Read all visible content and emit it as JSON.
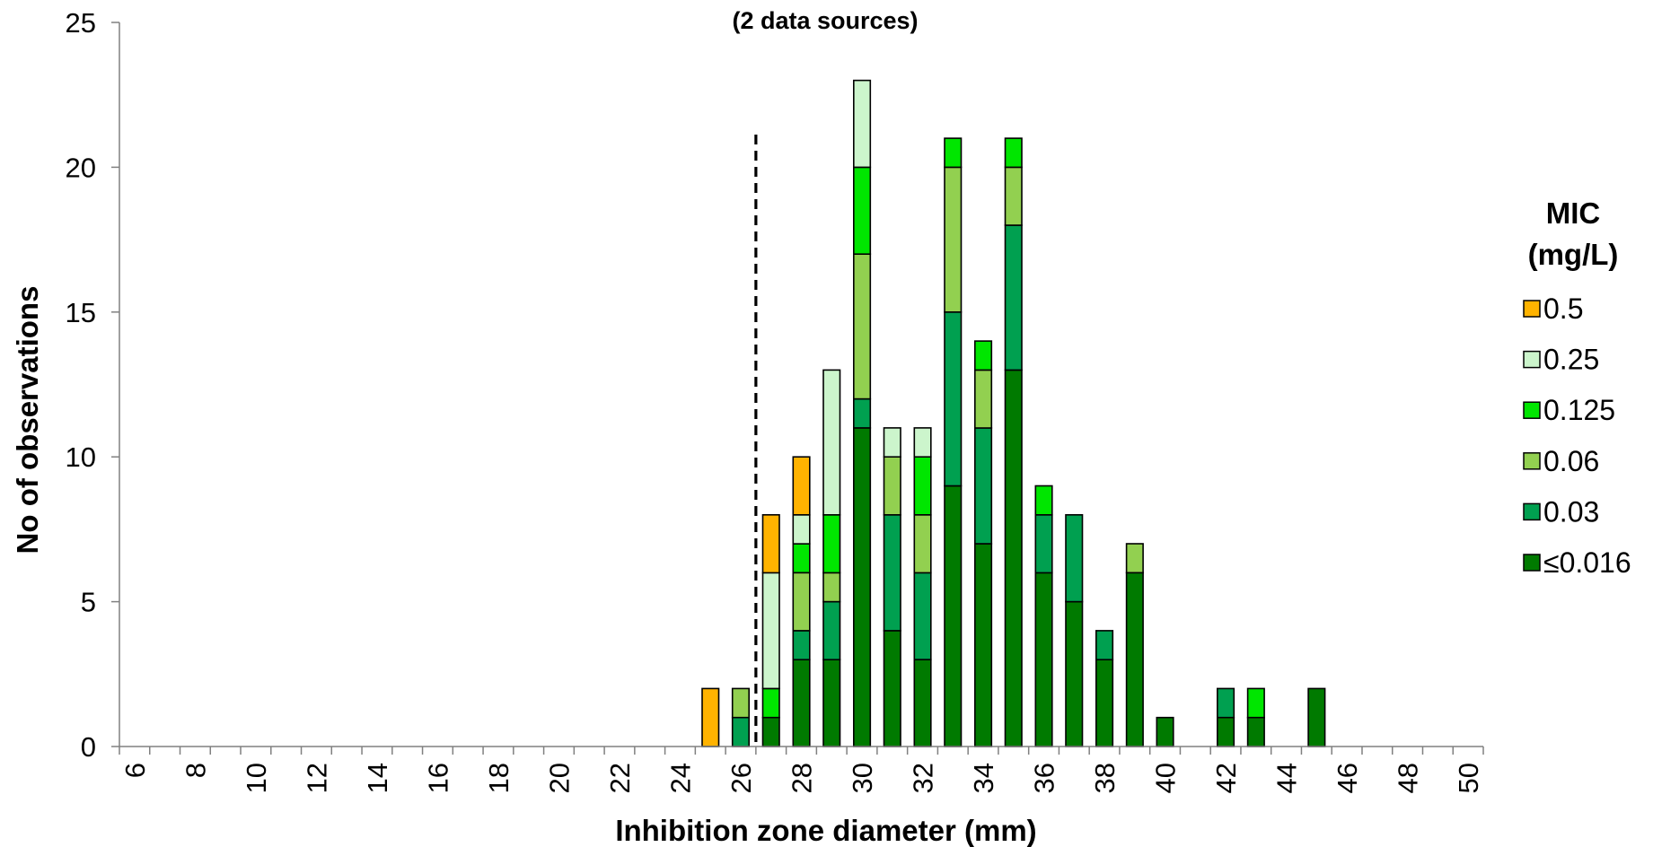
{
  "chart_data": {
    "type": "bar",
    "stacked": true,
    "subtitle": "(2 data sources)",
    "xlabel": "Inhibition zone diameter (mm)",
    "ylabel": "No of observations",
    "xlim": [
      6,
      50
    ],
    "ylim": [
      0,
      25
    ],
    "x_ticks": [
      6,
      8,
      10,
      12,
      14,
      16,
      18,
      20,
      22,
      24,
      26,
      28,
      30,
      32,
      34,
      36,
      38,
      40,
      42,
      44,
      46,
      48,
      50
    ],
    "y_ticks": [
      0,
      5,
      10,
      15,
      20,
      25
    ],
    "grid": false,
    "legend": {
      "title_line1": "MIC",
      "title_line2": "(mg/L)",
      "position": "right"
    },
    "breakpoint_line": {
      "x": 26.5,
      "style": "dashed",
      "color": "#000000"
    },
    "categories": [
      25,
      26,
      27,
      28,
      29,
      30,
      31,
      32,
      33,
      34,
      35,
      36,
      37,
      38,
      39,
      40,
      42,
      43,
      45
    ],
    "series": [
      {
        "name": "≤0.016",
        "color": "#007A00",
        "values": [
          0,
          0,
          1,
          3,
          3,
          11,
          4,
          3,
          9,
          7,
          13,
          6,
          5,
          3,
          6,
          1,
          1,
          1,
          2
        ]
      },
      {
        "name": "0.03",
        "color": "#00A050",
        "values": [
          0,
          1,
          0,
          1,
          2,
          1,
          4,
          3,
          6,
          4,
          5,
          2,
          3,
          1,
          0,
          0,
          1,
          0,
          0
        ]
      },
      {
        "name": "0.06",
        "color": "#92D050",
        "values": [
          0,
          1,
          0,
          2,
          1,
          5,
          2,
          2,
          5,
          2,
          2,
          0,
          0,
          0,
          1,
          0,
          0,
          0,
          0
        ]
      },
      {
        "name": "0.125",
        "color": "#00E600",
        "values": [
          0,
          0,
          1,
          1,
          2,
          3,
          0,
          2,
          1,
          1,
          1,
          1,
          0,
          0,
          0,
          0,
          0,
          1,
          0
        ]
      },
      {
        "name": "0.25",
        "color": "#CCF5CC",
        "values": [
          0,
          0,
          4,
          1,
          5,
          3,
          1,
          1,
          0,
          0,
          0,
          0,
          0,
          0,
          0,
          0,
          0,
          0,
          0
        ]
      },
      {
        "name": "0.5",
        "color": "#FFB300",
        "values": [
          2,
          0,
          2,
          2,
          0,
          0,
          0,
          0,
          0,
          0,
          0,
          0,
          0,
          0,
          0,
          0,
          0,
          0,
          0
        ]
      }
    ],
    "legend_order": [
      "0.5",
      "0.25",
      "0.125",
      "0.06",
      "0.03",
      "≤0.016"
    ]
  }
}
